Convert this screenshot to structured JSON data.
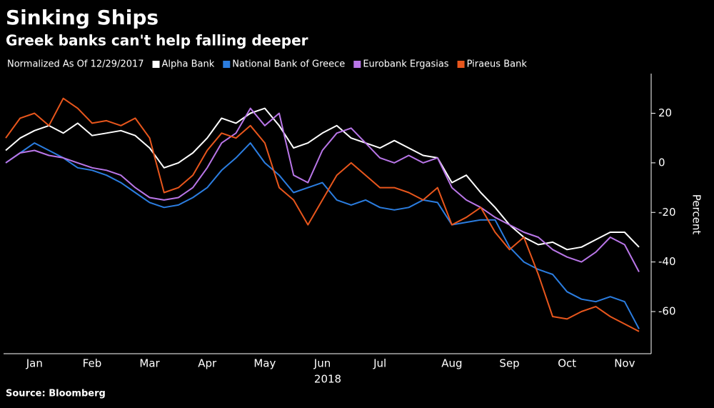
{
  "chart_data": {
    "type": "line",
    "title": "Sinking Ships",
    "subtitle": "Greek banks can't help falling deeper",
    "note": "Normalized As Of 12/29/2017",
    "y_label": "Percent",
    "x_sublabel": "2018",
    "source": "Source: Bloomberg",
    "categories": [
      null,
      null,
      "Jan",
      null,
      null,
      null,
      "Feb",
      null,
      null,
      null,
      "Mar",
      null,
      null,
      null,
      "Apr",
      null,
      null,
      null,
      "May",
      null,
      null,
      null,
      "Jun",
      null,
      null,
      null,
      "Jul",
      null,
      null,
      null,
      null,
      "Aug",
      null,
      null,
      null,
      "Sep",
      null,
      null,
      null,
      "Oct",
      null,
      null,
      null,
      "Nov",
      null
    ],
    "ylim": [
      -77,
      36
    ],
    "yticks": [
      20,
      0,
      -20,
      -40,
      -60
    ],
    "grid": false,
    "series": [
      {
        "name": "Alpha Bank",
        "color": "#ffffff",
        "values": [
          5,
          10,
          13,
          15,
          12,
          16,
          11,
          12,
          13,
          11,
          6,
          -2,
          0,
          4,
          10,
          18,
          16,
          20,
          22,
          15,
          6,
          8,
          12,
          15,
          10,
          8,
          6,
          9,
          6,
          3,
          2,
          -8,
          -5,
          -12,
          -18,
          -25,
          -30,
          -33,
          -32,
          -35,
          -34,
          -31,
          -28,
          -28,
          -34
        ]
      },
      {
        "name": "National Bank of Greece",
        "color": "#2b7de0",
        "values": [
          0,
          4,
          8,
          5,
          2,
          -2,
          -3,
          -5,
          -8,
          -12,
          -16,
          -18,
          -17,
          -14,
          -10,
          -3,
          2,
          8,
          0,
          -5,
          -12,
          -10,
          -8,
          -15,
          -17,
          -15,
          -18,
          -19,
          -18,
          -15,
          -16,
          -25,
          -24,
          -23,
          -23,
          -34,
          -40,
          -43,
          -45,
          -52,
          -55,
          -56,
          -54,
          -56,
          -67
        ]
      },
      {
        "name": "Eurobank Ergasias",
        "color": "#b976e8",
        "values": [
          0,
          4,
          5,
          3,
          2,
          0,
          -2,
          -3,
          -5,
          -10,
          -14,
          -15,
          -14,
          -10,
          -2,
          8,
          12,
          22,
          15,
          20,
          -5,
          -8,
          5,
          12,
          14,
          8,
          2,
          0,
          3,
          0,
          2,
          -10,
          -15,
          -18,
          -22,
          -25,
          -28,
          -30,
          -35,
          -38,
          -40,
          -36,
          -30,
          -33,
          -44
        ]
      },
      {
        "name": "Piraeus Bank",
        "color": "#e8561c",
        "values": [
          10,
          18,
          20,
          15,
          26,
          22,
          16,
          17,
          15,
          18,
          10,
          -12,
          -10,
          -5,
          5,
          12,
          10,
          15,
          8,
          -10,
          -15,
          -25,
          -15,
          -5,
          0,
          -5,
          -10,
          -10,
          -12,
          -15,
          -10,
          -25,
          -22,
          -18,
          -28,
          -35,
          -30,
          -45,
          -62,
          -63,
          -60,
          -58,
          -62,
          -65,
          -68
        ]
      }
    ]
  }
}
